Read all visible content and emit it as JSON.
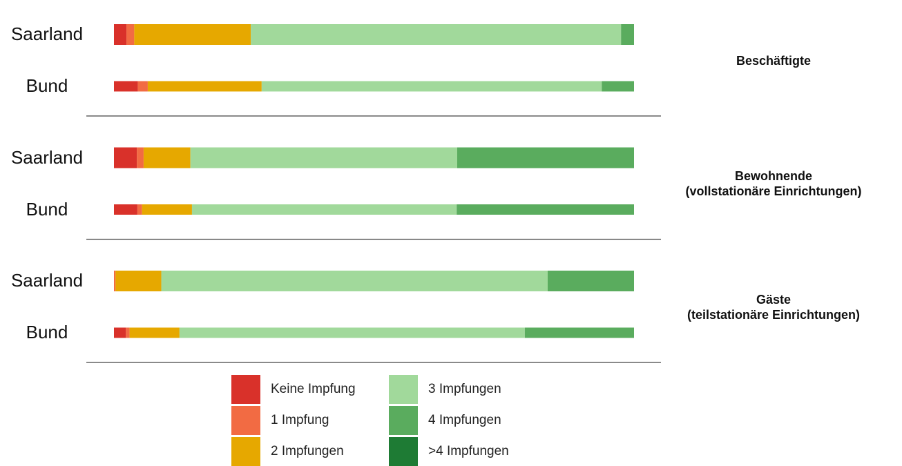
{
  "chart_data": {
    "type": "bar",
    "orientation": "horizontal",
    "stacked": true,
    "categories": [
      "Saarland",
      "Bund",
      "Saarland",
      "Bund",
      "Saarland",
      "Bund"
    ],
    "group_labels": [
      "Beschäftigte",
      "Bewohnende\n(vollstationäre Einrichtungen)",
      "Gäste\n(teilstationäre Einrichtungen)"
    ],
    "xlim": [
      0,
      100
    ],
    "series": [
      {
        "name": "Keine Impfung",
        "color": "#d9312a",
        "values": [
          2.4,
          4.6,
          4.4,
          4.5,
          0,
          2.3
        ]
      },
      {
        "name": "1 Impfung",
        "color": "#f26b43",
        "values": [
          1.5,
          1.9,
          1.3,
          0.9,
          0.3,
          0.7
        ]
      },
      {
        "name": "2 Impfungen",
        "color": "#e6a800",
        "values": [
          22.4,
          21.9,
          9.0,
          9.6,
          8.8,
          9.6
        ]
      },
      {
        "name": "3 Impfungen",
        "color": "#a1d99b",
        "values": [
          71.2,
          65.4,
          51.3,
          50.9,
          74.3,
          66.4
        ]
      },
      {
        "name": "4 Impfungen",
        "color": "#5aac5e",
        "values": [
          2.5,
          6.2,
          34.0,
          34.1,
          16.6,
          21.0
        ]
      },
      {
        "name": ">4 Impfungen",
        "color": "#1e7b34",
        "values": [
          0,
          0,
          0,
          0,
          0,
          0
        ]
      }
    ]
  }
}
